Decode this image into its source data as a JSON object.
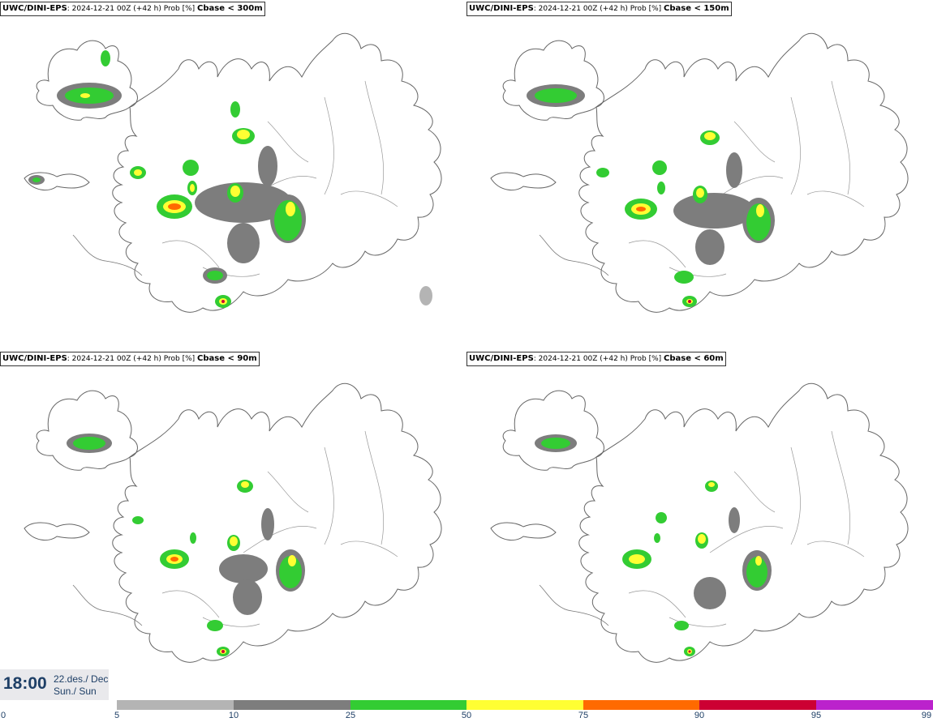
{
  "panels": [
    {
      "model": "UWC/DINI-EPS",
      "info": ": 2024-12-21 00Z (+42 h) Prob [%] ",
      "threshold": "Cbase < 300m"
    },
    {
      "model": "UWC/DINI-EPS",
      "info": ": 2024-12-21 00Z (+42 h) Prob [%] ",
      "threshold": "Cbase < 150m"
    },
    {
      "model": "UWC/DINI-EPS",
      "info": ": 2024-12-21 00Z (+42 h) Prob [%] ",
      "threshold": "Cbase < 90m"
    },
    {
      "model": "UWC/DINI-EPS",
      "info": ": 2024-12-21 00Z (+42 h) Prob [%] ",
      "threshold": "Cbase < 60m"
    }
  ],
  "valid_time": {
    "time": "18:00",
    "date_line": "22.des./ Dec",
    "day_line": "Sun./ Sun"
  },
  "legend": {
    "ticks": [
      "0",
      "5",
      "10",
      "25",
      "50",
      "75",
      "90",
      "95",
      "99"
    ],
    "colors": [
      "#b4b4b4",
      "#7d7d7d",
      "#33cc33",
      "#ffff33",
      "#ff6a00",
      "#cc0033",
      "#bb22cc",
      "#f0b4f0"
    ]
  }
}
